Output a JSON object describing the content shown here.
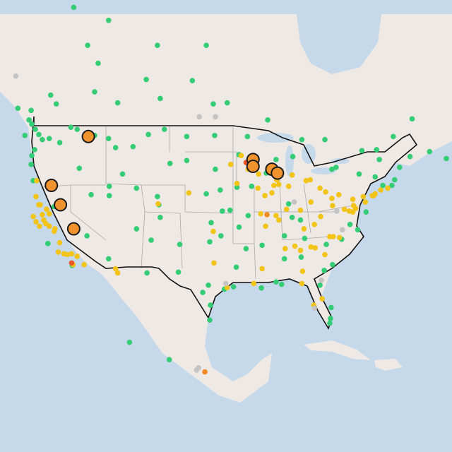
{
  "map": {
    "levels": {
      "good": {
        "color": "#34cc74"
      },
      "moderate": {
        "color": "#f2c418"
      },
      "sensitive": {
        "color": "#f08a24"
      },
      "unhealthy": {
        "color": "#e8562a"
      },
      "none": {
        "color": "#c4c4c4"
      }
    },
    "fire_color": "#f0922e",
    "stations": [
      [
        -123,
        48,
        "good"
      ],
      [
        -122.5,
        47.5,
        "good"
      ],
      [
        -122,
        47,
        "good"
      ],
      [
        -121.5,
        46.5,
        "good"
      ],
      [
        -122.6,
        45.5,
        "good"
      ],
      [
        -123,
        44.9,
        "good"
      ],
      [
        -123.1,
        44,
        "good"
      ],
      [
        -122.8,
        42.3,
        "good"
      ],
      [
        -124,
        46.9,
        "good"
      ],
      [
        -120.5,
        46.6,
        "good"
      ],
      [
        -119,
        46.2,
        "good"
      ],
      [
        -117.4,
        47.7,
        "good"
      ],
      [
        -116.5,
        47.5,
        "good"
      ],
      [
        -116.2,
        43.6,
        "good"
      ],
      [
        -114,
        46.9,
        "good"
      ],
      [
        -112,
        46.6,
        "good"
      ],
      [
        -111,
        45.7,
        "good"
      ],
      [
        -108.5,
        45.8,
        "good"
      ],
      [
        -106.3,
        47,
        "good"
      ],
      [
        -104,
        47.5,
        "good"
      ],
      [
        -100.8,
        46.8,
        "good"
      ],
      [
        -96.8,
        46.9,
        "good"
      ],
      [
        -97,
        49.9,
        "good"
      ],
      [
        -104.6,
        50.4,
        "good"
      ],
      [
        -106.6,
        52.1,
        "good"
      ],
      [
        -113.5,
        53.5,
        "good"
      ],
      [
        -114,
        51,
        "good"
      ],
      [
        -119.5,
        49.9,
        "good"
      ],
      [
        -123.1,
        49.3,
        "good"
      ],
      [
        -123.4,
        48.4,
        "good"
      ],
      [
        -125,
        49.5,
        "good"
      ],
      [
        -120.3,
        50.7,
        "good"
      ],
      [
        -110.7,
        50,
        "good"
      ],
      [
        -115,
        55,
        "good"
      ],
      [
        -117,
        58,
        "good"
      ],
      [
        -112,
        57,
        "good"
      ],
      [
        -105,
        55,
        "good"
      ],
      [
        -100,
        52,
        "good"
      ],
      [
        -98,
        55,
        "good"
      ],
      [
        -95,
        50,
        "good"
      ],
      [
        -89.2,
        48.4,
        "good"
      ],
      [
        -84.3,
        46.5,
        "good"
      ],
      [
        -81,
        46.5,
        "good"
      ],
      [
        -80,
        43.5,
        "good"
      ],
      [
        -79.4,
        43.7,
        "good"
      ],
      [
        -75.7,
        45.4,
        "good"
      ],
      [
        -73.6,
        45.5,
        "good"
      ],
      [
        -71.2,
        46.8,
        "good"
      ],
      [
        -66,
        45.3,
        "good"
      ],
      [
        -63.6,
        44.6,
        "good"
      ],
      [
        -60,
        46.1,
        "good"
      ],
      [
        -68.5,
        48.5,
        "good"
      ],
      [
        -110,
        43,
        "good"
      ],
      [
        -108,
        41.5,
        "good"
      ],
      [
        -105,
        40.6,
        "good"
      ],
      [
        -104.8,
        39.7,
        "good"
      ],
      [
        -104.6,
        38.3,
        "good"
      ],
      [
        -105.9,
        35.7,
        "good"
      ],
      [
        -111.9,
        40.7,
        "good"
      ],
      [
        -111.9,
        41.7,
        "good"
      ],
      [
        -112,
        33.5,
        "good"
      ],
      [
        -115.1,
        36.2,
        "good"
      ],
      [
        -114.5,
        40.8,
        "good"
      ],
      [
        -119.8,
        39.5,
        "good"
      ],
      [
        -108,
        37,
        "good"
      ],
      [
        -101.8,
        35.2,
        "good"
      ],
      [
        -97.5,
        35.5,
        "good"
      ],
      [
        -95.9,
        36.2,
        "good"
      ],
      [
        -97.3,
        37.7,
        "good"
      ],
      [
        -95.7,
        39,
        "good"
      ],
      [
        -94.6,
        39.1,
        "good"
      ],
      [
        -96,
        41.3,
        "good"
      ],
      [
        -98,
        40.9,
        "good"
      ],
      [
        -100.8,
        44.4,
        "good"
      ],
      [
        -103.2,
        44.1,
        "good"
      ],
      [
        -96.7,
        43.5,
        "good"
      ],
      [
        -93.3,
        45,
        "good"
      ],
      [
        -92.1,
        46.8,
        "good"
      ],
      [
        -92,
        38.5,
        "good"
      ],
      [
        -93.3,
        37.2,
        "good"
      ],
      [
        -92.3,
        34.7,
        "good"
      ],
      [
        -90.1,
        29.95,
        "good"
      ],
      [
        -93.7,
        32.5,
        "good"
      ],
      [
        -95.4,
        29.8,
        "good"
      ],
      [
        -94.1,
        30.1,
        "good"
      ],
      [
        -97.7,
        30.3,
        "good"
      ],
      [
        -98.5,
        29.4,
        "good"
      ],
      [
        -97.4,
        27.8,
        "good"
      ],
      [
        -97.5,
        25.9,
        "good"
      ],
      [
        -106.5,
        31.8,
        "good"
      ],
      [
        -102,
        31.9,
        "good"
      ],
      [
        -88,
        30.7,
        "good"
      ],
      [
        -86.8,
        33.5,
        "good"
      ],
      [
        -84.4,
        33.7,
        "good"
      ],
      [
        -81.1,
        32.1,
        "good"
      ],
      [
        -81.7,
        30.3,
        "good"
      ],
      [
        -80.2,
        26.1,
        "good"
      ],
      [
        -80.3,
        25.5,
        "good"
      ],
      [
        -80.1,
        27.5,
        "good"
      ],
      [
        -87.2,
        30.4,
        "good"
      ],
      [
        -79.9,
        32.8,
        "good"
      ],
      [
        -80.8,
        35.2,
        "good"
      ],
      [
        -78.6,
        35.8,
        "good"
      ],
      [
        -77.4,
        37.5,
        "good"
      ],
      [
        -76.3,
        36.9,
        "good"
      ],
      [
        -75.1,
        38.9,
        "good"
      ],
      [
        -72.7,
        41.8,
        "good"
      ],
      [
        -71.4,
        41.8,
        "good"
      ],
      [
        -71,
        42.4,
        "good"
      ],
      [
        -70.3,
        43.7,
        "good"
      ],
      [
        -68.8,
        44.8,
        "good"
      ],
      [
        -73.8,
        42.7,
        "good"
      ],
      [
        -76.1,
        43,
        "good"
      ],
      [
        -73.2,
        44.5,
        "good"
      ],
      [
        -86.2,
        39.8,
        "good"
      ],
      [
        -85.7,
        38.3,
        "good"
      ],
      [
        -84.5,
        38,
        "good"
      ],
      [
        -86.8,
        36.2,
        "good"
      ],
      [
        -90,
        35.1,
        "good"
      ],
      [
        -83.9,
        35.9,
        "good"
      ],
      [
        -89.4,
        43.1,
        "good"
      ],
      [
        -88,
        44.5,
        "good"
      ],
      [
        -85.6,
        44.8,
        "good"
      ],
      [
        -93.6,
        41.6,
        "good"
      ],
      [
        -91.5,
        41.7,
        "good"
      ],
      [
        -117.2,
        32.7,
        "good"
      ],
      [
        -120.7,
        35.3,
        "good"
      ],
      [
        -109,
        23,
        "good"
      ],
      [
        -103.3,
        20.7,
        "good"
      ],
      [
        -122.4,
        37.8,
        "moderate"
      ],
      [
        -121.9,
        37.3,
        "moderate"
      ],
      [
        -121.5,
        38.6,
        "moderate"
      ],
      [
        -121.3,
        38,
        "moderate"
      ],
      [
        -120.5,
        37.3,
        "moderate"
      ],
      [
        -119.8,
        36.7,
        "moderate"
      ],
      [
        -119,
        35.4,
        "moderate"
      ],
      [
        -118.4,
        34.1,
        "moderate"
      ],
      [
        -117.9,
        34,
        "moderate"
      ],
      [
        -117.3,
        34.1,
        "moderate"
      ],
      [
        -116.5,
        33.8,
        "moderate"
      ],
      [
        -117.1,
        32.8,
        "moderate"
      ],
      [
        -122,
        39.7,
        "moderate"
      ],
      [
        -122.4,
        40.6,
        "moderate"
      ],
      [
        -121.8,
        39.7,
        "moderate"
      ],
      [
        -120.9,
        39.2,
        "moderate"
      ],
      [
        -122.8,
        38.4,
        "moderate"
      ],
      [
        -121,
        37.6,
        "moderate"
      ],
      [
        -119.2,
        34.3,
        "moderate"
      ],
      [
        -115.5,
        32.8,
        "moderate"
      ],
      [
        -120.5,
        38.7,
        "moderate"
      ],
      [
        -119.7,
        37,
        "moderate"
      ],
      [
        -122.3,
        42.3,
        "moderate"
      ],
      [
        -114.4,
        46.9,
        "moderate"
      ],
      [
        -94.5,
        44,
        "moderate"
      ],
      [
        -93,
        44.9,
        "moderate"
      ],
      [
        -92,
        43.5,
        "moderate"
      ],
      [
        -93.6,
        42,
        "moderate"
      ],
      [
        -90.6,
        41.5,
        "moderate"
      ],
      [
        -89.6,
        40.7,
        "moderate"
      ],
      [
        -87.6,
        41.9,
        "moderate"
      ],
      [
        -87.9,
        42.4,
        "moderate"
      ],
      [
        -88.3,
        41.8,
        "moderate"
      ],
      [
        -86.2,
        41.7,
        "moderate"
      ],
      [
        -85.7,
        42.9,
        "moderate"
      ],
      [
        -83.7,
        42.3,
        "moderate"
      ],
      [
        -83.1,
        42.4,
        "moderate"
      ],
      [
        -84.5,
        39.1,
        "moderate"
      ],
      [
        -83,
        40,
        "moderate"
      ],
      [
        -81.7,
        41.5,
        "moderate"
      ],
      [
        -80.9,
        41.1,
        "moderate"
      ],
      [
        -80,
        40.4,
        "moderate"
      ],
      [
        -79,
        40.8,
        "moderate"
      ],
      [
        -77,
        40.3,
        "moderate"
      ],
      [
        -75.2,
        40,
        "moderate"
      ],
      [
        -75.5,
        40.6,
        "moderate"
      ],
      [
        -74.2,
        40.7,
        "moderate"
      ],
      [
        -74,
        40.7,
        "moderate"
      ],
      [
        -73.8,
        40.9,
        "moderate"
      ],
      [
        -73,
        41.3,
        "moderate"
      ],
      [
        -72,
        41.5,
        "moderate"
      ],
      [
        -76.6,
        39.3,
        "moderate"
      ],
      [
        -77,
        38.9,
        "moderate"
      ],
      [
        -76.9,
        39.6,
        "moderate"
      ],
      [
        -77.5,
        39,
        "moderate"
      ],
      [
        -78.2,
        39.2,
        "moderate"
      ],
      [
        -79.9,
        39.6,
        "moderate"
      ],
      [
        -81.6,
        38.4,
        "moderate"
      ],
      [
        -82.5,
        37.5,
        "moderate"
      ],
      [
        -84,
        37,
        "moderate"
      ],
      [
        -85.3,
        35,
        "moderate"
      ],
      [
        -84.5,
        34.5,
        "moderate"
      ],
      [
        -83,
        34.9,
        "moderate"
      ],
      [
        -82.4,
        34.8,
        "moderate"
      ],
      [
        -81,
        34,
        "moderate"
      ],
      [
        -80.3,
        36.1,
        "moderate"
      ],
      [
        -79.8,
        36.1,
        "moderate"
      ],
      [
        -78.9,
        36,
        "moderate"
      ],
      [
        -90.2,
        38.7,
        "moderate"
      ],
      [
        -89.5,
        37.3,
        "moderate"
      ],
      [
        -88,
        38.5,
        "moderate"
      ],
      [
        -87.6,
        38,
        "moderate"
      ],
      [
        -86.5,
        39.2,
        "moderate"
      ],
      [
        -88.6,
        41,
        "moderate"
      ],
      [
        -90.5,
        43,
        "moderate"
      ],
      [
        -95,
        30,
        "moderate"
      ],
      [
        -91.2,
        30.5,
        "moderate"
      ],
      [
        -90,
        32.3,
        "moderate"
      ],
      [
        -84.2,
        32,
        "moderate"
      ],
      [
        -84.3,
        30.5,
        "moderate"
      ],
      [
        -81.4,
        28.6,
        "moderate"
      ],
      [
        -82.6,
        27.8,
        "moderate"
      ],
      [
        -86.7,
        34.7,
        "moderate"
      ],
      [
        -100.5,
        41,
        "moderate"
      ],
      [
        -97,
        36.7,
        "moderate"
      ],
      [
        -96.9,
        33,
        "moderate"
      ],
      [
        -104.9,
        39.8,
        "moderate"
      ],
      [
        -111,
        32.3,
        "moderate"
      ],
      [
        -110.7,
        31.8,
        "moderate"
      ],
      [
        -89.3,
        38.6,
        "sensitive"
      ],
      [
        -98.2,
        19.05,
        "sensitive"
      ],
      [
        -117.3,
        33,
        "unhealthy"
      ],
      [
        -92.3,
        44.2,
        "unhealthy"
      ],
      [
        -125.3,
        52.4,
        "none"
      ],
      [
        -99,
        48.7,
        "none"
      ],
      [
        -96.7,
        48.7,
        "none"
      ],
      [
        -82.5,
        27.4,
        "none"
      ],
      [
        -81.5,
        30.9,
        "none"
      ],
      [
        -95.2,
        30.5,
        "none"
      ],
      [
        -79.3,
        39,
        "none"
      ],
      [
        -85.4,
        40,
        "none"
      ],
      [
        -78.5,
        36.9,
        "none"
      ],
      [
        -99.1,
        19.6,
        "none"
      ],
      [
        -99.4,
        19.3,
        "none"
      ]
    ],
    "fires": [
      [
        -114.9,
        46.8
      ],
      [
        -120.2,
        41.8
      ],
      [
        -118.9,
        39.7
      ],
      [
        -117,
        37
      ],
      [
        -91.3,
        44.5
      ],
      [
        -91.3,
        43.8
      ],
      [
        -88.6,
        43.5
      ],
      [
        -87.8,
        43.1
      ]
    ]
  }
}
